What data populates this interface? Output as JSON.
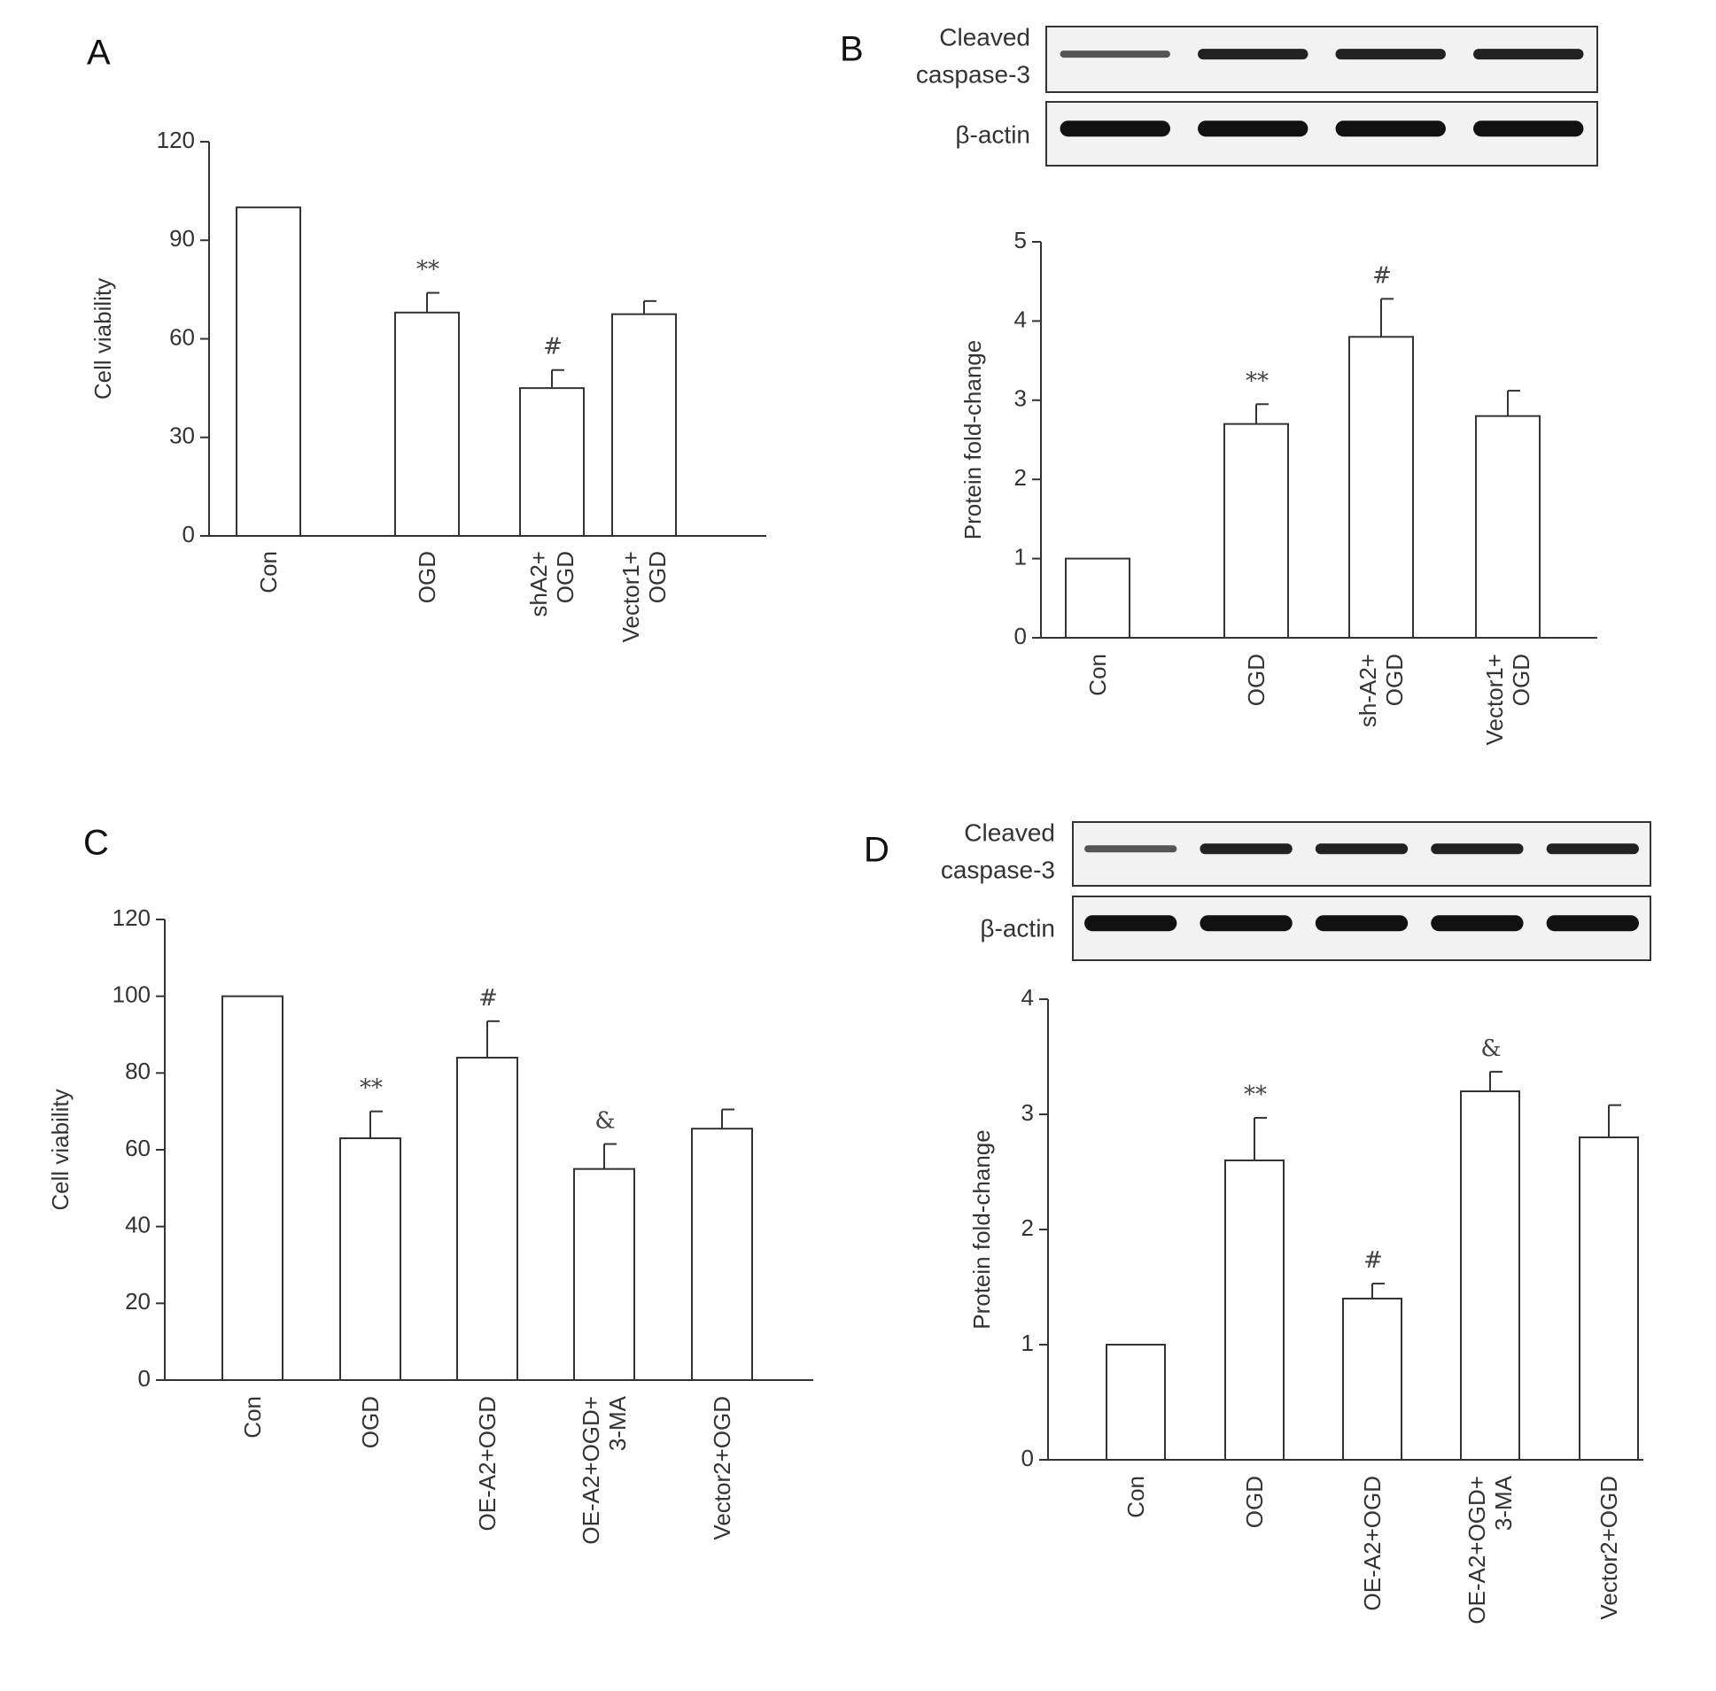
{
  "panels": [
    {
      "letter": "A",
      "chart_data": {
        "type": "bar",
        "ylabel": "Cell viability",
        "ylim": [
          0,
          120
        ],
        "yticks": [
          0,
          30,
          60,
          90,
          120
        ],
        "categories": [
          [
            "Con"
          ],
          [
            "OGD"
          ],
          [
            "shA2+",
            "OGD"
          ],
          [
            "Vector1+",
            "OGD"
          ]
        ],
        "values": [
          100,
          68,
          45,
          67.5
        ],
        "errors": [
          0,
          6,
          5.5,
          4
        ],
        "significance": [
          "",
          "**",
          "#",
          ""
        ]
      }
    },
    {
      "letter": "B",
      "blot": {
        "rows": [
          "Cleaved caspase-3",
          "β-actin"
        ],
        "lanes": 4
      },
      "chart_data": {
        "type": "bar",
        "ylabel": "Protein fold-change",
        "ylim": [
          0,
          5
        ],
        "yticks": [
          0,
          1,
          2,
          3,
          4,
          5
        ],
        "categories": [
          [
            "Con"
          ],
          [
            "OGD"
          ],
          [
            "sh-A2+",
            "OGD"
          ],
          [
            "Vector1+",
            "OGD"
          ]
        ],
        "values": [
          1,
          2.7,
          3.8,
          2.8
        ],
        "errors": [
          0,
          0.25,
          0.48,
          0.32
        ],
        "significance": [
          "",
          "**",
          "#",
          ""
        ]
      }
    },
    {
      "letter": "C",
      "chart_data": {
        "type": "bar",
        "ylabel": "Cell viability",
        "ylim": [
          0,
          120
        ],
        "yticks": [
          0,
          20,
          40,
          60,
          80,
          100,
          120
        ],
        "categories": [
          [
            "Con"
          ],
          [
            "OGD"
          ],
          [
            "OE-A2+OGD"
          ],
          [
            "OE-A2+OGD+",
            "3-MA"
          ],
          [
            "Vector2+OGD"
          ]
        ],
        "values": [
          100,
          63,
          84,
          55,
          65.5
        ],
        "errors": [
          0,
          7,
          9.5,
          6.5,
          5
        ],
        "significance": [
          "",
          "**",
          "#",
          "&",
          ""
        ]
      }
    },
    {
      "letter": "D",
      "blot": {
        "rows": [
          "Cleaved caspase-3",
          "β-actin"
        ],
        "lanes": 5
      },
      "chart_data": {
        "type": "bar",
        "ylabel": "Protein fold-change",
        "ylim": [
          0,
          4
        ],
        "yticks": [
          0,
          1,
          2,
          3,
          4
        ],
        "categories": [
          [
            "Con"
          ],
          [
            "OGD"
          ],
          [
            "OE-A2+OGD"
          ],
          [
            "OE-A2+OGD+",
            "3-MA"
          ],
          [
            "Vector2+OGD"
          ]
        ],
        "values": [
          1,
          2.6,
          1.4,
          3.2,
          2.8
        ],
        "errors": [
          0,
          0.37,
          0.13,
          0.17,
          0.28
        ],
        "significance": [
          "",
          "**",
          "#",
          "&",
          ""
        ]
      }
    }
  ]
}
